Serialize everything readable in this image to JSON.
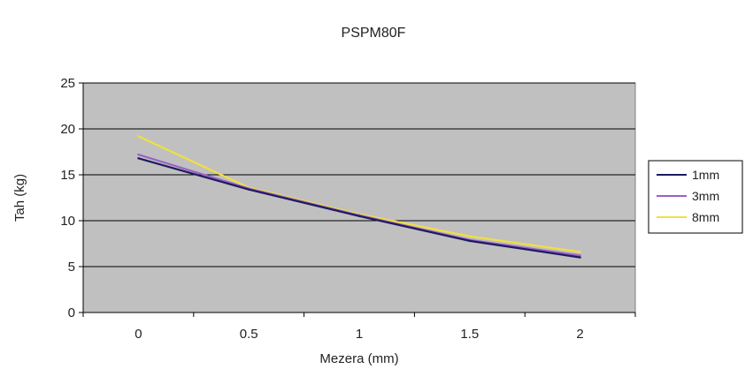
{
  "chart_data": {
    "type": "line",
    "title": "PSPM80F",
    "xlabel": "Mezera (mm)",
    "ylabel": "Tah (kg)",
    "categories": [
      "0",
      "0.5",
      "1",
      "1.5",
      "2"
    ],
    "x": [
      0,
      0.5,
      1,
      1.5,
      2
    ],
    "ylim": [
      0,
      25
    ],
    "yticks": [
      0,
      5,
      10,
      15,
      20,
      25
    ],
    "grid": true,
    "legend_position": "right",
    "plot_background": "#c0c0c0",
    "series": [
      {
        "name": "1mm",
        "color": "#1c1c5e",
        "values": [
          16.8,
          13.4,
          10.5,
          7.8,
          6.0
        ]
      },
      {
        "name": "3mm",
        "color": "#9b5fc8",
        "values": [
          17.2,
          13.5,
          10.6,
          7.9,
          6.2
        ]
      },
      {
        "name": "8mm",
        "color": "#f0e040",
        "values": [
          19.2,
          13.6,
          10.7,
          8.3,
          6.6
        ]
      }
    ]
  }
}
